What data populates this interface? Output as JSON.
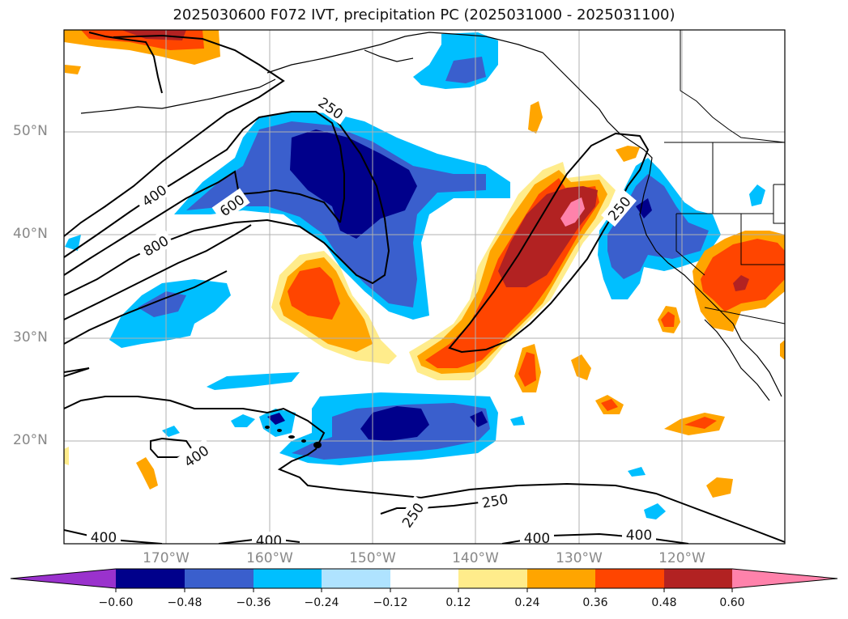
{
  "title": "2025030600 F072 IVT, precipitation PC (2025031000 - 2025031100)",
  "lat_labels": [
    "50°N",
    "40°N",
    "30°N",
    "20°N"
  ],
  "lon_labels": [
    "170°W",
    "160°W",
    "150°W",
    "140°W",
    "130°W",
    "120°W"
  ],
  "colorbar": {
    "ticks": [
      "−0.60",
      "−0.48",
      "−0.36",
      "−0.24",
      "−0.12",
      "0.12",
      "0.24",
      "0.36",
      "0.48",
      "0.60"
    ],
    "colors": [
      "#9a32cd",
      "#00008b",
      "#3a5fcd",
      "#00bfff",
      "#afe3ff",
      "#ffffff",
      "#ffec8b",
      "#ffa500",
      "#ff4500",
      "#b22222",
      "#ff82ab"
    ]
  },
  "contour_labels": [
    "250",
    "400",
    "600",
    "800",
    "250",
    "400",
    "250",
    "250",
    "400",
    "400",
    "400",
    "400"
  ]
}
